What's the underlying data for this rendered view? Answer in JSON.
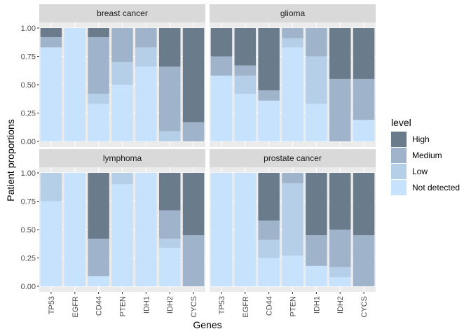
{
  "chart_data": {
    "type": "bar",
    "stacked": true,
    "facets": [
      "breast cancer",
      "glioma",
      "lymphoma",
      "prostate cancer"
    ],
    "categories": [
      "TP53",
      "EGFR",
      "CD44",
      "PTEN",
      "IDH1",
      "IDH2",
      "CYCS"
    ],
    "ylabel": "Patient proportions",
    "xlabel": "Genes",
    "ylim": [
      0,
      1
    ],
    "yticks": [
      "0.00",
      "0.25",
      "0.50",
      "0.75",
      "1.00"
    ],
    "legend": {
      "title": "level",
      "position": "right",
      "levels": [
        "High",
        "Medium",
        "Low",
        "Not detected"
      ]
    },
    "colors": {
      "High": "#6a7b8c",
      "Medium": "#9fb4cb",
      "Low": "#b6cfe8",
      "Not detected": "#c6e2fc"
    },
    "panel_background": "#ebebeb",
    "strip_background": "#d9d9d9",
    "grid": true,
    "data": {
      "breast cancer": {
        "TP53": {
          "High": 0.08,
          "Medium": 0.09,
          "Low": 0,
          "Not detected": 0.83
        },
        "EGFR": {
          "High": 0,
          "Medium": 0,
          "Low": 0,
          "Not detected": 1.0
        },
        "CD44": {
          "High": 0.08,
          "Medium": 0.5,
          "Low": 0.09,
          "Not detected": 0.33
        },
        "PTEN": {
          "High": 0,
          "Medium": 0.3,
          "Low": 0.2,
          "Not detected": 0.5
        },
        "IDH1": {
          "High": 0,
          "Medium": 0.17,
          "Low": 0.17,
          "Not detected": 0.66
        },
        "IDH2": {
          "High": 0.34,
          "Medium": 0.57,
          "Low": 0.09,
          "Not detected": 0
        },
        "CYCS": {
          "High": 0.83,
          "Medium": 0.17,
          "Low": 0,
          "Not detected": 0
        }
      },
      "glioma": {
        "TP53": {
          "High": 0.25,
          "Medium": 0.17,
          "Low": 0,
          "Not detected": 0.58
        },
        "EGFR": {
          "High": 0.33,
          "Medium": 0.09,
          "Low": 0.16,
          "Not detected": 0.42
        },
        "CD44": {
          "High": 0.55,
          "Medium": 0.09,
          "Low": 0,
          "Not detected": 0.36
        },
        "PTEN": {
          "High": 0,
          "Medium": 0.09,
          "Low": 0.08,
          "Not detected": 0.83
        },
        "IDH1": {
          "High": 0,
          "Medium": 0.25,
          "Low": 0.42,
          "Not detected": 0.33
        },
        "IDH2": {
          "High": 0.45,
          "Medium": 0.55,
          "Low": 0,
          "Not detected": 0
        },
        "CYCS": {
          "High": 0.45,
          "Medium": 0.36,
          "Low": 0,
          "Not detected": 0.19
        }
      },
      "lymphoma": {
        "TP53": {
          "High": 0,
          "Medium": 0,
          "Low": 0.25,
          "Not detected": 0.75
        },
        "EGFR": {
          "High": 0,
          "Medium": 0,
          "Low": 0,
          "Not detected": 1.0
        },
        "CD44": {
          "High": 0.58,
          "Medium": 0.33,
          "Low": 0,
          "Not detected": 0.09
        },
        "PTEN": {
          "High": 0,
          "Medium": 0,
          "Low": 0.1,
          "Not detected": 0.9
        },
        "IDH1": {
          "High": 0,
          "Medium": 0,
          "Low": 0,
          "Not detected": 1.0
        },
        "IDH2": {
          "High": 0.33,
          "Medium": 0.25,
          "Low": 0.08,
          "Not detected": 0.34
        },
        "CYCS": {
          "High": 0.55,
          "Medium": 0.45,
          "Low": 0,
          "Not detected": 0
        }
      },
      "prostate cancer": {
        "TP53": {
          "High": 0,
          "Medium": 0,
          "Low": 0,
          "Not detected": 1.0
        },
        "EGFR": {
          "High": 0,
          "Medium": 0,
          "Low": 0,
          "Not detected": 1.0
        },
        "CD44": {
          "High": 0.42,
          "Medium": 0.17,
          "Low": 0.16,
          "Not detected": 0.25
        },
        "PTEN": {
          "High": 0,
          "Medium": 0.09,
          "Low": 0.64,
          "Not detected": 0.27
        },
        "IDH1": {
          "High": 0.55,
          "Medium": 0.27,
          "Low": 0,
          "Not detected": 0.18
        },
        "IDH2": {
          "High": 0.5,
          "Medium": 0.33,
          "Low": 0.09,
          "Not detected": 0.08
        },
        "CYCS": {
          "High": 0.55,
          "Medium": 0.45,
          "Low": 0,
          "Not detected": 0
        }
      }
    }
  }
}
